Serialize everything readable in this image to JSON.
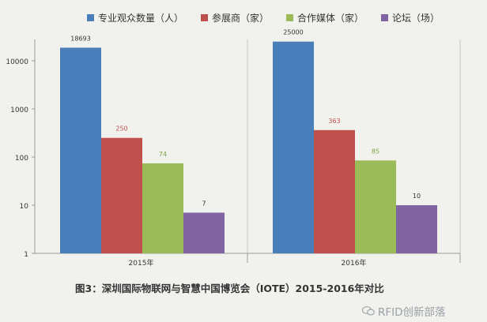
{
  "chart_data": {
    "type": "bar",
    "yscale": "log",
    "ylim": [
      1,
      30000
    ],
    "yticks": [
      1,
      10,
      100,
      1000,
      10000
    ],
    "ytick_labels": [
      "1",
      "10",
      "100",
      "1000",
      "10000"
    ],
    "categories": [
      "2015年",
      "2016年"
    ],
    "series": [
      {
        "name": "专业观众数量（人）",
        "color": "#4a7ebb",
        "values": [
          18693,
          25000
        ],
        "labels": [
          "18693",
          "25000"
        ],
        "label_color": "#333333"
      },
      {
        "name": "参展商（家）",
        "color": "#c0504d",
        "values": [
          250,
          363
        ],
        "labels": [
          "250",
          "363"
        ],
        "label_color": "#c0504d"
      },
      {
        "name": "合作媒体（家）",
        "color": "#9bbb59",
        "values": [
          74,
          85
        ],
        "labels": [
          "74",
          "85"
        ],
        "label_color": "#7ea344"
      },
      {
        "name": "论坛（场）",
        "color": "#8064a2",
        "values": [
          7,
          10
        ],
        "labels": [
          "7",
          "10"
        ],
        "label_color": "#333333"
      }
    ],
    "legend_position": "top",
    "grid": false
  },
  "caption": "图3：深圳国际物联网与智慧中国博览会（IOTE）2015-2016年对比",
  "watermark": "RFID创新部落"
}
